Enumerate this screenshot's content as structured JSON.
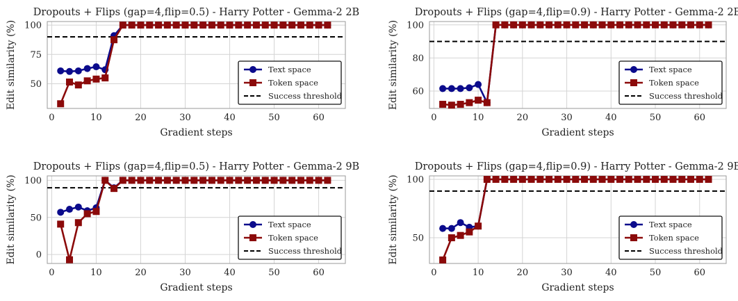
{
  "chart_data": [
    {
      "type": "line",
      "title": "Dropouts + Flips (gap=4,flip=0.5) - Harry Potter - Gemma-2 2B",
      "xlabel": "Gradient steps",
      "ylabel": "Edit similarity (%)",
      "xlim": [
        -1,
        66
      ],
      "ylim": [
        29,
        103
      ],
      "xticks": [
        0,
        10,
        20,
        30,
        40,
        50,
        60
      ],
      "yticks": [
        50,
        75,
        100
      ],
      "grid": true,
      "legend_position": "lower-right",
      "threshold": {
        "name": "Success threshold",
        "value": 90,
        "color": "#000000"
      },
      "series": [
        {
          "name": "Text space",
          "color": "#0b0b8c",
          "marker": "circle",
          "x": [
            2,
            4,
            6,
            8,
            10,
            12,
            14,
            16,
            18,
            20,
            22,
            24,
            26,
            28,
            30,
            32,
            34,
            36,
            38,
            40,
            42,
            44,
            46,
            48,
            50,
            52,
            54,
            56,
            58,
            60,
            62
          ],
          "values": [
            61,
            60.5,
            61,
            63,
            64.5,
            62,
            91,
            100,
            100,
            100,
            100,
            100,
            100,
            100,
            100,
            100,
            100,
            100,
            100,
            100,
            100,
            100,
            100,
            100,
            100,
            100,
            100,
            100,
            100,
            100,
            100
          ]
        },
        {
          "name": "Token space",
          "color": "#8b0a0a",
          "marker": "square",
          "x": [
            2,
            4,
            6,
            8,
            10,
            12,
            14,
            16,
            18,
            20,
            22,
            24,
            26,
            28,
            30,
            32,
            34,
            36,
            38,
            40,
            42,
            44,
            46,
            48,
            50,
            52,
            54,
            56,
            58,
            60,
            62
          ],
          "values": [
            33,
            51.5,
            49,
            52.5,
            54,
            55,
            87.5,
            100,
            100,
            100,
            100,
            100,
            100,
            100,
            100,
            100,
            100,
            100,
            100,
            100,
            100,
            100,
            100,
            100,
            100,
            100,
            100,
            100,
            100,
            100,
            100
          ]
        }
      ]
    },
    {
      "type": "line",
      "title": "Dropouts + Flips (gap=4,flip=0.9) - Harry Potter - Gemma-2 2B",
      "xlabel": "Gradient steps",
      "ylabel": "Edit similarity (%)",
      "xlim": [
        -1,
        66
      ],
      "ylim": [
        49.5,
        102
      ],
      "xticks": [
        0,
        10,
        20,
        30,
        40,
        50,
        60
      ],
      "yticks": [
        60,
        80,
        100
      ],
      "grid": true,
      "legend_position": "lower-right",
      "threshold": {
        "name": "Success threshold",
        "value": 90,
        "color": "#000000"
      },
      "series": [
        {
          "name": "Text space",
          "color": "#0b0b8c",
          "marker": "circle",
          "x": [
            2,
            4,
            6,
            8,
            10,
            12,
            14,
            16,
            18,
            20,
            22,
            24,
            26,
            28,
            30,
            32,
            34,
            36,
            38,
            40,
            42,
            44,
            46,
            48,
            50,
            52,
            54,
            56,
            58,
            60,
            62
          ],
          "values": [
            61.5,
            61.5,
            61.5,
            62,
            64,
            53,
            100,
            100,
            100,
            100,
            100,
            100,
            100,
            100,
            100,
            100,
            100,
            100,
            100,
            100,
            100,
            100,
            100,
            100,
            100,
            100,
            100,
            100,
            100,
            100,
            100
          ]
        },
        {
          "name": "Token space",
          "color": "#8b0a0a",
          "marker": "square",
          "x": [
            2,
            4,
            6,
            8,
            10,
            12,
            14,
            16,
            18,
            20,
            22,
            24,
            26,
            28,
            30,
            32,
            34,
            36,
            38,
            40,
            42,
            44,
            46,
            48,
            50,
            52,
            54,
            56,
            58,
            60,
            62
          ],
          "values": [
            52,
            51.5,
            52,
            53,
            54.5,
            53,
            100,
            100,
            100,
            100,
            100,
            100,
            100,
            100,
            100,
            100,
            100,
            100,
            100,
            100,
            100,
            100,
            100,
            100,
            100,
            100,
            100,
            100,
            100,
            100,
            100
          ]
        }
      ]
    },
    {
      "type": "line",
      "title": "Dropouts + Flips (gap=4,flip=0.5) - Harry Potter - Gemma-2 9B",
      "xlabel": "Gradient steps",
      "ylabel": "Edit similarity (%)",
      "xlim": [
        -1,
        66
      ],
      "ylim": [
        -12,
        106
      ],
      "xticks": [
        0,
        10,
        20,
        30,
        40,
        50,
        60
      ],
      "yticks": [
        0,
        50,
        100
      ],
      "grid": true,
      "legend_position": "lower-right",
      "threshold": {
        "name": "Success threshold",
        "value": 90,
        "color": "#000000"
      },
      "series": [
        {
          "name": "Text space",
          "color": "#0b0b8c",
          "marker": "circle",
          "x": [
            2,
            4,
            6,
            8,
            10,
            12,
            14,
            16,
            18,
            20,
            22,
            24,
            26,
            28,
            30,
            32,
            34,
            36,
            38,
            40,
            42,
            44,
            46,
            48,
            50,
            52,
            54,
            56,
            58,
            60,
            62
          ],
          "values": [
            57,
            61,
            64,
            59,
            63,
            100,
            90,
            100,
            100,
            100,
            100,
            100,
            100,
            100,
            100,
            100,
            100,
            100,
            100,
            100,
            100,
            100,
            100,
            100,
            100,
            100,
            100,
            100,
            100,
            100,
            100
          ]
        },
        {
          "name": "Token space",
          "color": "#8b0a0a",
          "marker": "square",
          "x": [
            2,
            4,
            6,
            8,
            10,
            12,
            14,
            16,
            18,
            20,
            22,
            24,
            26,
            28,
            30,
            32,
            34,
            36,
            38,
            40,
            42,
            44,
            46,
            48,
            50,
            52,
            54,
            56,
            58,
            60,
            62
          ],
          "values": [
            41,
            -7,
            43,
            55,
            58,
            100,
            89,
            100,
            100,
            100,
            100,
            100,
            100,
            100,
            100,
            100,
            100,
            100,
            100,
            100,
            100,
            100,
            100,
            100,
            100,
            100,
            100,
            100,
            100,
            100,
            100
          ]
        }
      ]
    },
    {
      "type": "line",
      "title": "Dropouts + Flips (gap=4,flip=0.9) - Harry Potter - Gemma-2 9B",
      "xlabel": "Gradient steps",
      "ylabel": "Edit similarity (%)",
      "xlim": [
        -1,
        66
      ],
      "ylim": [
        28,
        103
      ],
      "xticks": [
        0,
        10,
        20,
        30,
        40,
        50,
        60
      ],
      "yticks": [
        50,
        100
      ],
      "grid": true,
      "legend_position": "lower-right",
      "threshold": {
        "name": "Success threshold",
        "value": 90,
        "color": "#000000"
      },
      "series": [
        {
          "name": "Text space",
          "color": "#0b0b8c",
          "marker": "circle",
          "x": [
            2,
            4,
            6,
            8,
            10,
            12,
            14,
            16,
            18,
            20,
            22,
            24,
            26,
            28,
            30,
            32,
            34,
            36,
            38,
            40,
            42,
            44,
            46,
            48,
            50,
            52,
            54,
            56,
            58,
            60,
            62
          ],
          "values": [
            58,
            58,
            63,
            59,
            60,
            100,
            100,
            100,
            100,
            100,
            100,
            100,
            100,
            100,
            100,
            100,
            100,
            100,
            100,
            100,
            100,
            100,
            100,
            100,
            100,
            100,
            100,
            100,
            100,
            100,
            100
          ]
        },
        {
          "name": "Token space",
          "color": "#8b0a0a",
          "marker": "square",
          "x": [
            2,
            4,
            6,
            8,
            10,
            12,
            14,
            16,
            18,
            20,
            22,
            24,
            26,
            28,
            30,
            32,
            34,
            36,
            38,
            40,
            42,
            44,
            46,
            48,
            50,
            52,
            54,
            56,
            58,
            60,
            62
          ],
          "values": [
            31,
            50,
            52,
            55,
            60,
            100,
            100,
            100,
            100,
            100,
            100,
            100,
            100,
            100,
            100,
            100,
            100,
            100,
            100,
            100,
            100,
            100,
            100,
            100,
            100,
            100,
            100,
            100,
            100,
            100,
            100
          ]
        }
      ]
    }
  ]
}
